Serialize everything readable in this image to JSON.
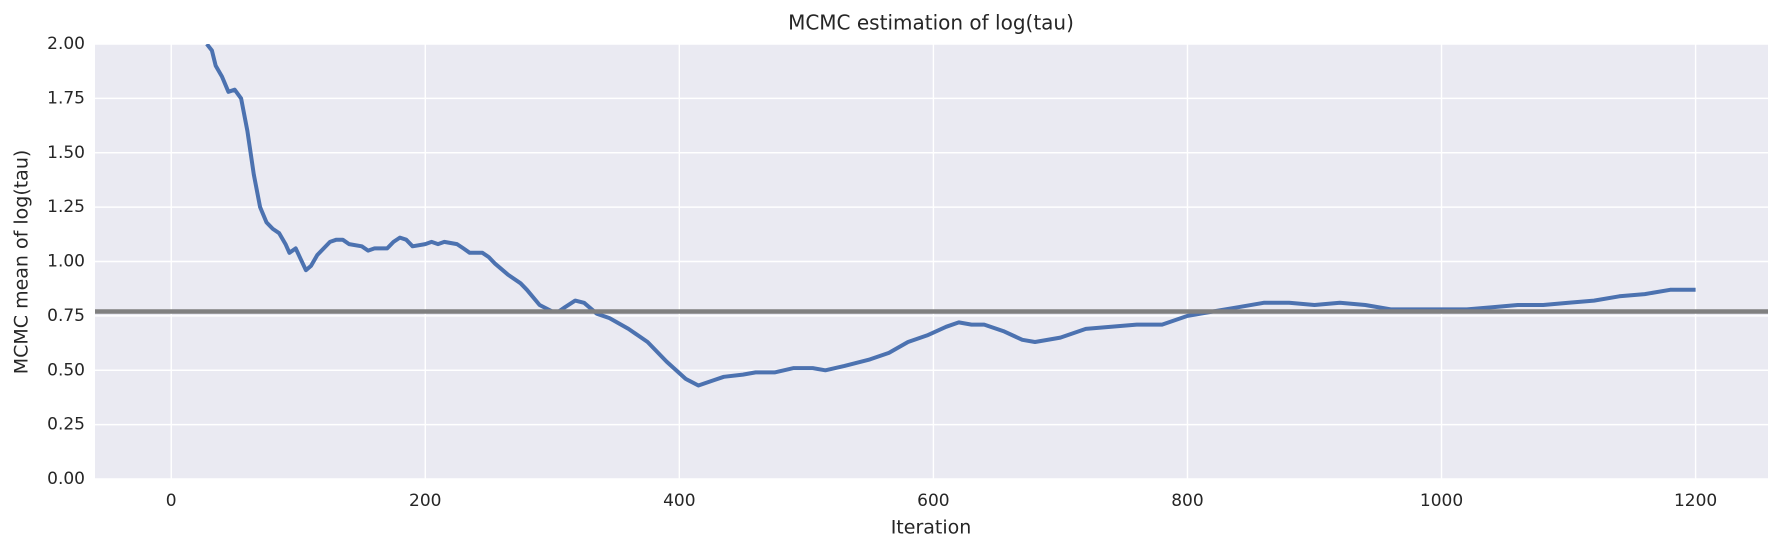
{
  "chart_data": {
    "type": "line",
    "title": "MCMC estimation of log(tau)",
    "xlabel": "Iteration",
    "ylabel": "MCMC mean of log(tau)",
    "x": [
      28,
      32,
      35,
      40,
      45,
      50,
      55,
      60,
      65,
      70,
      75,
      80,
      85,
      90,
      93,
      98,
      102,
      106,
      110,
      115,
      120,
      125,
      130,
      135,
      140,
      150,
      155,
      160,
      170,
      175,
      180,
      185,
      190,
      200,
      205,
      210,
      215,
      225,
      230,
      235,
      245,
      250,
      255,
      265,
      275,
      280,
      290,
      300,
      305,
      310,
      318,
      325,
      335,
      345,
      360,
      375,
      390,
      405,
      415,
      425,
      435,
      450,
      460,
      475,
      490,
      505,
      515,
      530,
      550,
      565,
      580,
      595,
      610,
      620,
      630,
      640,
      655,
      670,
      680,
      700,
      720,
      740,
      760,
      780,
      800,
      820,
      840,
      860,
      880,
      900,
      920,
      940,
      960,
      980,
      1000,
      1020,
      1040,
      1060,
      1080,
      1100,
      1120,
      1140,
      1160,
      1180,
      1200
    ],
    "values": [
      2.0,
      1.97,
      1.9,
      1.85,
      1.78,
      1.79,
      1.75,
      1.6,
      1.4,
      1.25,
      1.18,
      1.15,
      1.13,
      1.08,
      1.04,
      1.06,
      1.01,
      0.96,
      0.98,
      1.03,
      1.06,
      1.09,
      1.1,
      1.1,
      1.08,
      1.07,
      1.05,
      1.06,
      1.06,
      1.09,
      1.11,
      1.1,
      1.07,
      1.08,
      1.09,
      1.08,
      1.09,
      1.08,
      1.06,
      1.04,
      1.04,
      1.02,
      0.99,
      0.94,
      0.9,
      0.87,
      0.8,
      0.77,
      0.77,
      0.79,
      0.82,
      0.81,
      0.76,
      0.74,
      0.69,
      0.63,
      0.54,
      0.46,
      0.43,
      0.45,
      0.47,
      0.48,
      0.49,
      0.49,
      0.51,
      0.51,
      0.5,
      0.52,
      0.55,
      0.58,
      0.63,
      0.66,
      0.7,
      0.72,
      0.71,
      0.71,
      0.68,
      0.64,
      0.63,
      0.65,
      0.69,
      0.7,
      0.71,
      0.71,
      0.75,
      0.77,
      0.79,
      0.81,
      0.81,
      0.8,
      0.81,
      0.8,
      0.78,
      0.78,
      0.78,
      0.78,
      0.79,
      0.8,
      0.8,
      0.81,
      0.82,
      0.84,
      0.85,
      0.87,
      0.87
    ],
    "color": "#4c72b0",
    "reference_line": 0.77,
    "reference_color": "#808080",
    "xlim": [
      -60,
      1257
    ],
    "ylim": [
      0,
      2
    ],
    "xticks": [
      0,
      200,
      400,
      600,
      800,
      1000,
      1200
    ],
    "yticks": [
      {
        "value": 0,
        "label": "0.00"
      },
      0.25,
      {
        "value": 0.5,
        "label": "0.50"
      },
      0.75,
      {
        "value": 1,
        "label": "1.00"
      },
      1.25,
      {
        "value": 1.5,
        "label": "1.50"
      },
      1.75,
      {
        "value": 2,
        "label": "2.00"
      }
    ],
    "grid": true
  }
}
